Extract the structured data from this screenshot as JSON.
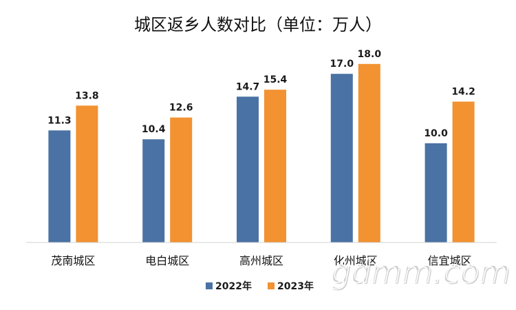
{
  "chart_data": {
    "type": "bar",
    "title": "城区返乡人数对比（单位：万人）",
    "categories": [
      "茂南城区",
      "电白城区",
      "高州城区",
      "化州城区",
      "信宜城区"
    ],
    "series": [
      {
        "name": "2022年",
        "values": [
          11.3,
          10.4,
          14.7,
          17.0,
          10.0
        ],
        "labels": [
          "11.3",
          "10.4",
          "14.7",
          "17.0",
          "10.0"
        ],
        "color": "#4a72a4"
      },
      {
        "name": "2023年",
        "values": [
          13.8,
          12.6,
          15.4,
          18.0,
          14.2
        ],
        "labels": [
          "13.8",
          "12.6",
          "15.4",
          "18.0",
          "14.2"
        ],
        "color": "#f29231"
      }
    ],
    "xlabel": "",
    "ylabel": "",
    "ylim": [
      0,
      20
    ],
    "grid": false,
    "legend_position": "bottom",
    "watermark": "gdmm.com"
  }
}
